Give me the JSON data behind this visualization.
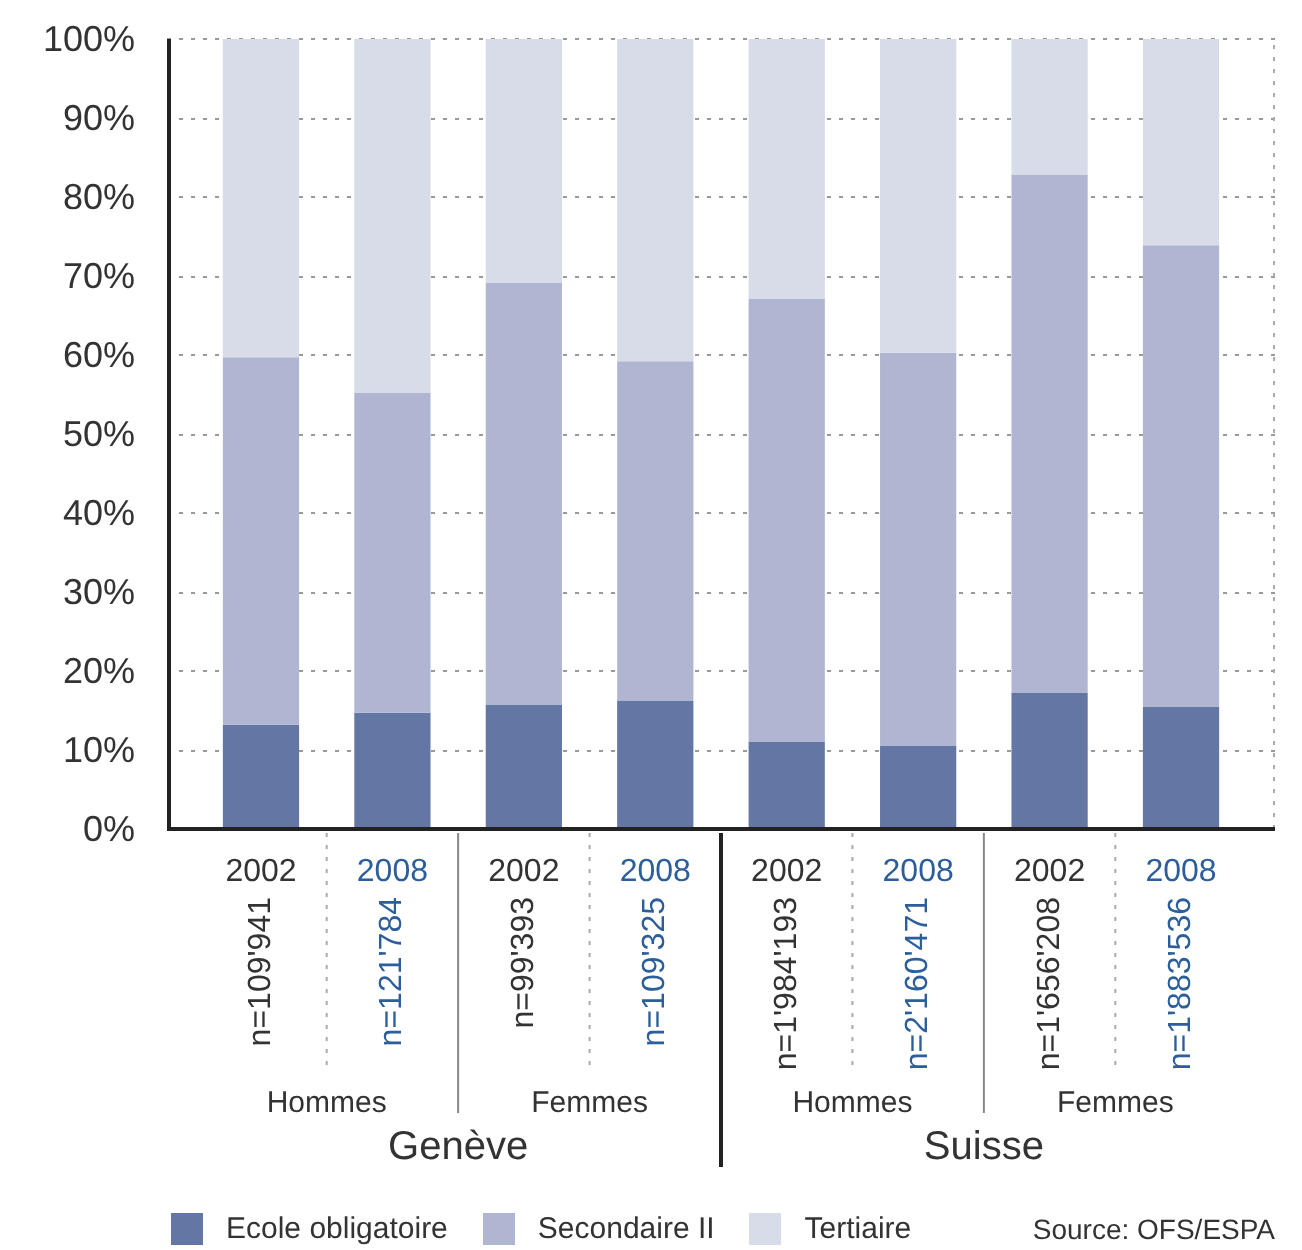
{
  "chart_data": {
    "type": "bar",
    "stacked": true,
    "categories": [
      "2002",
      "2008",
      "2002",
      "2008",
      "2002",
      "2008",
      "2002",
      "2008"
    ],
    "series": [
      {
        "name": "Ecole obligatoire",
        "color": "#6476a4",
        "values": [
          13.2,
          14.7,
          15.7,
          16.2,
          11.0,
          10.5,
          17.2,
          15.5
        ]
      },
      {
        "name": "Secondaire II",
        "color": "#b0b5d1",
        "values": [
          46.5,
          40.5,
          53.4,
          43.0,
          56.1,
          49.8,
          65.6,
          58.4
        ]
      },
      {
        "name": "Tertiaire",
        "color": "#d8dbe8",
        "values": [
          40.3,
          44.8,
          30.9,
          40.8,
          32.9,
          39.7,
          17.2,
          26.1
        ]
      }
    ],
    "ylim": [
      0,
      100
    ],
    "yticks": [
      {
        "value": 0,
        "label": "0%"
      },
      {
        "value": 10,
        "label": "10%"
      },
      {
        "value": 20,
        "label": "20%"
      },
      {
        "value": 30,
        "label": "30%"
      },
      {
        "value": 40,
        "label": "40%"
      },
      {
        "value": 50,
        "label": "50%"
      },
      {
        "value": 60,
        "label": "60%"
      },
      {
        "value": 70,
        "label": "70%"
      },
      {
        "value": 80,
        "label": "80%"
      },
      {
        "value": 90,
        "label": "90%"
      },
      {
        "value": 100,
        "label": "100%"
      }
    ],
    "grid": "y",
    "legend": "bottom",
    "annotations": [
      "n=109'941",
      "n=121'784",
      "n=99'393",
      "n=109'325",
      "n=1'984'193",
      "n=2'160'471",
      "n=1'656'208",
      "n=1'883'536",
      "Hommes",
      "Femmes",
      "Hommes",
      "Femmes",
      "Genève",
      "Suisse",
      "Source: OFS/ESPA"
    ]
  }
}
